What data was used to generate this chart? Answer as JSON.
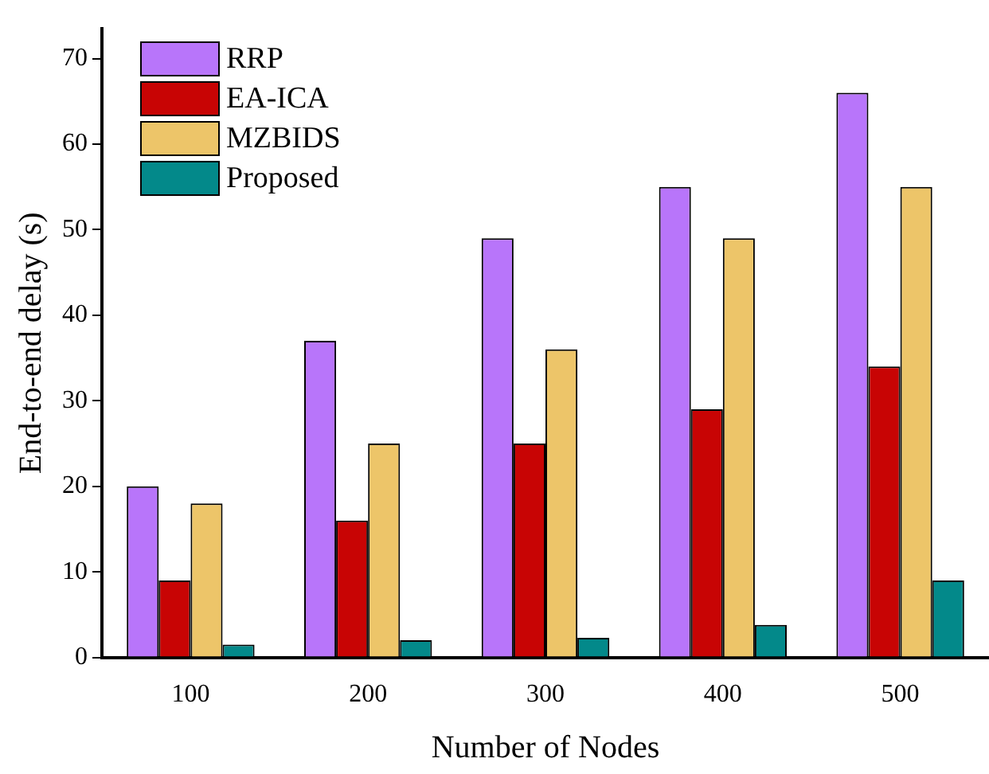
{
  "chart_data": {
    "type": "bar",
    "xlabel": "Number of Nodes",
    "ylabel": "End-to-end delay (s)",
    "categories": [
      "100",
      "200",
      "300",
      "400",
      "500"
    ],
    "series": [
      {
        "name": "RRP",
        "color": "#b875fa",
        "values": [
          20,
          37,
          49,
          55,
          66
        ]
      },
      {
        "name": "EA-ICA",
        "color": "#c80404",
        "values": [
          9,
          16,
          25,
          29,
          34
        ]
      },
      {
        "name": "MZBIDS",
        "color": "#edc569",
        "values": [
          18,
          25,
          36,
          49,
          55
        ]
      },
      {
        "name": "Proposed",
        "color": "#03898a",
        "values": [
          1.5,
          2,
          2.3,
          3.8,
          9
        ]
      }
    ],
    "ylim": [
      0,
      73.5
    ],
    "yticks": [
      0,
      10,
      20,
      30,
      40,
      50,
      60,
      70
    ],
    "grid": false,
    "legend": "top left"
  }
}
